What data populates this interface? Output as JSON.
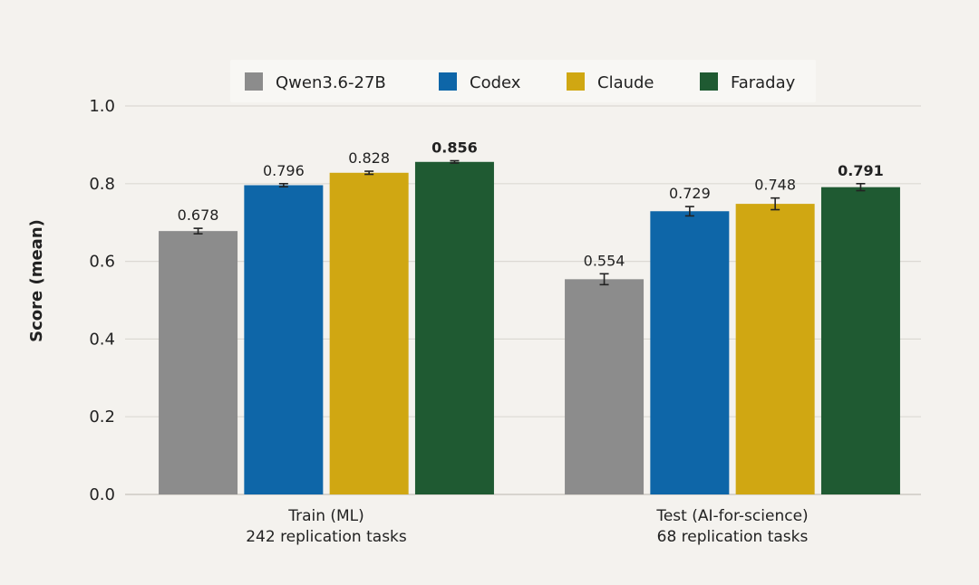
{
  "chart_data": {
    "type": "bar",
    "ylabel": "Score (mean)",
    "ylim": [
      0,
      1.0
    ],
    "yticks": [
      "0.0",
      "0.2",
      "0.4",
      "0.6",
      "0.8",
      "1.0"
    ],
    "grid": true,
    "legend_position": "top-center",
    "categories": [
      {
        "line1": "Train (ML)",
        "line2": "242 replication tasks"
      },
      {
        "line1": "Test (AI-for-science)",
        "line2": "68 replication tasks"
      }
    ],
    "series": [
      {
        "name": "Qwen3.6-27B",
        "color": "#8c8c8c",
        "values": [
          0.678,
          0.554
        ],
        "errors": [
          0.007,
          0.014
        ],
        "labels": [
          "0.678",
          "0.554"
        ],
        "bold": false
      },
      {
        "name": "Codex",
        "color": "#0e66a8",
        "values": [
          0.796,
          0.729
        ],
        "errors": [
          0.004,
          0.012
        ],
        "labels": [
          "0.796",
          "0.729"
        ],
        "bold": false
      },
      {
        "name": "Claude",
        "color": "#d0a712",
        "values": [
          0.828,
          0.748
        ],
        "errors": [
          0.004,
          0.015
        ],
        "labels": [
          "0.828",
          "0.748"
        ],
        "bold": false
      },
      {
        "name": "Faraday",
        "color": "#1f5a32",
        "values": [
          0.856,
          0.791
        ],
        "errors": [
          0.003,
          0.009
        ],
        "labels": [
          "0.856",
          "0.791"
        ],
        "bold": true
      }
    ]
  }
}
